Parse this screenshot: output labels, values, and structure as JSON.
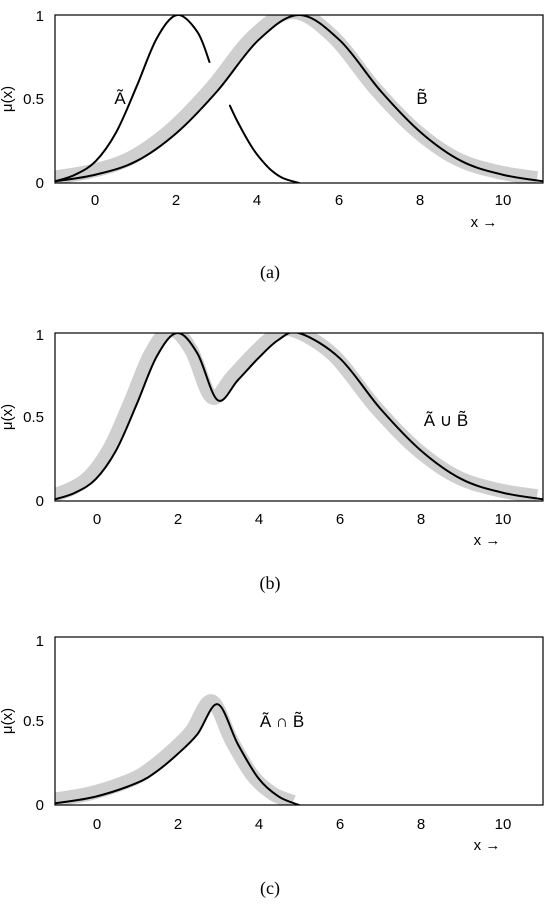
{
  "chart_data": [
    {
      "type": "line",
      "caption": "(a)",
      "ylabel": "μ(x)",
      "xlabel": "x →",
      "xlim": [
        -1,
        11
      ],
      "ylim": [
        0,
        1
      ],
      "xticks": [
        "0",
        "2",
        "4",
        "6",
        "8",
        "10"
      ],
      "yticks": [
        "0",
        "0.5",
        "1"
      ],
      "annotations": [
        {
          "text": "Ã",
          "x": 1.6,
          "y": 0.52
        },
        {
          "text": "B̃",
          "x": 8.1,
          "y": 0.52
        }
      ],
      "series": [
        {
          "x": [
            -1,
            -0.5,
            0,
            0.5,
            1,
            1.5,
            2,
            2.5,
            2.8
          ],
          "values": [
            0.01,
            0.05,
            0.13,
            0.3,
            0.57,
            0.86,
            1.0,
            0.9,
            0.72
          ]
        },
        {
          "x": [
            3.3,
            3.5,
            3.8,
            4,
            4.3,
            4.6,
            5
          ],
          "values": [
            0.46,
            0.36,
            0.23,
            0.16,
            0.08,
            0.03,
            0.0
          ]
        },
        {
          "x": [
            -1,
            0,
            1,
            2,
            3,
            4,
            5,
            6,
            7,
            8,
            9,
            10,
            11
          ],
          "values": [
            0.01,
            0.05,
            0.13,
            0.3,
            0.55,
            0.85,
            1.0,
            0.85,
            0.55,
            0.3,
            0.13,
            0.05,
            0.01
          ]
        }
      ]
    },
    {
      "type": "line",
      "caption": "(b)",
      "ylabel": "μ(x)",
      "xlabel": "x →",
      "xlim": [
        -1,
        11
      ],
      "ylim": [
        0,
        1
      ],
      "xticks": [
        "0",
        "2",
        "4",
        "6",
        "8",
        "10"
      ],
      "yticks": [
        "0",
        "0.5",
        "1"
      ],
      "annotations": [
        {
          "text": "Ã ∪ B̃",
          "x": 8.0,
          "y": 0.48
        }
      ],
      "series": [
        {
          "x": [
            -1,
            -0.5,
            0,
            0.5,
            1,
            1.5,
            2,
            2.5,
            3,
            3.5,
            4,
            4.5,
            5,
            6,
            7,
            8,
            9,
            10,
            11
          ],
          "values": [
            0.01,
            0.05,
            0.13,
            0.3,
            0.57,
            0.86,
            1.0,
            0.88,
            0.6,
            0.72,
            0.85,
            0.96,
            1.0,
            0.85,
            0.55,
            0.3,
            0.13,
            0.05,
            0.01
          ]
        }
      ]
    },
    {
      "type": "line",
      "caption": "(c)",
      "ylabel": "μ(x)",
      "xlabel": "x →",
      "xlim": [
        -1,
        11
      ],
      "ylim": [
        0,
        1
      ],
      "xticks": [
        "0",
        "2",
        "4",
        "6",
        "8",
        "10"
      ],
      "yticks": [
        "0",
        "0.5",
        "1"
      ],
      "annotations": [
        {
          "text": "Ã ∩ B̃",
          "x": 4.0,
          "y": 0.53
        }
      ],
      "series": [
        {
          "x": [
            -1,
            0,
            1,
            1.5,
            2,
            2.5,
            3,
            3.5,
            4,
            4.5,
            5
          ],
          "values": [
            0.01,
            0.05,
            0.13,
            0.2,
            0.3,
            0.42,
            0.6,
            0.36,
            0.16,
            0.05,
            0.0
          ]
        }
      ]
    }
  ]
}
